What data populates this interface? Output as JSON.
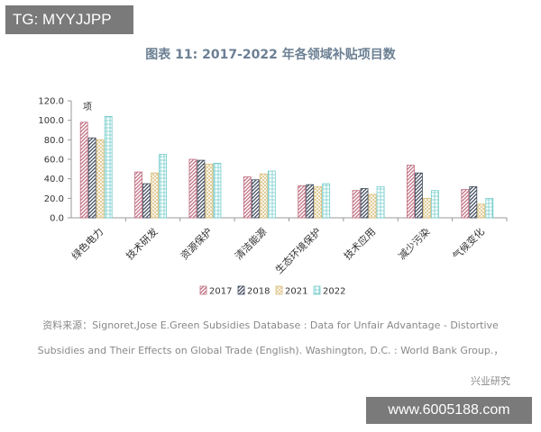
{
  "watermark_top": "TG: MYYJJPP",
  "watermark_bottom": "www.6005188.com",
  "source_line1": "资料来源：Signoret,Jose E.Green Subsidies Database : Data for Unfair Advantage - Distortive",
  "source_line2": "Subsidies and Their Effects on Global Trade (English). Washington, D.C. : World Bank Group.，",
  "publisher": "兴业研究",
  "colors": {
    "title": "#6b7f93",
    "2017": "#c06f82",
    "2018": "#404a5c",
    "2021": "#d8bc78",
    "2022": "#74cccc",
    "axis": "#999999"
  },
  "chart_data": {
    "type": "bar",
    "title": "图表 11:  2017-2022 年各领域补贴项目数",
    "ylabel": "项",
    "ylim": [
      0,
      120
    ],
    "yticks": [
      "0.0",
      "20.0",
      "40.0",
      "60.0",
      "80.0",
      "100.0",
      "120.0"
    ],
    "legend_position": "bottom",
    "grid": false,
    "categories": [
      "绿色电力",
      "技术研发",
      "资源保护",
      "清洁能源",
      "生态环境保护",
      "技术应用",
      "减少污染",
      "气候变化"
    ],
    "series": [
      {
        "name": "2017",
        "values": [
          98,
          47,
          60,
          42,
          33,
          28,
          54,
          29
        ]
      },
      {
        "name": "2018",
        "values": [
          82,
          35,
          59,
          39,
          34,
          30,
          46,
          32
        ]
      },
      {
        "name": "2021",
        "values": [
          80,
          46,
          55,
          45,
          32,
          24,
          20,
          14
        ]
      },
      {
        "name": "2022",
        "values": [
          104,
          65,
          56,
          48,
          35,
          32,
          28,
          20
        ]
      }
    ]
  }
}
